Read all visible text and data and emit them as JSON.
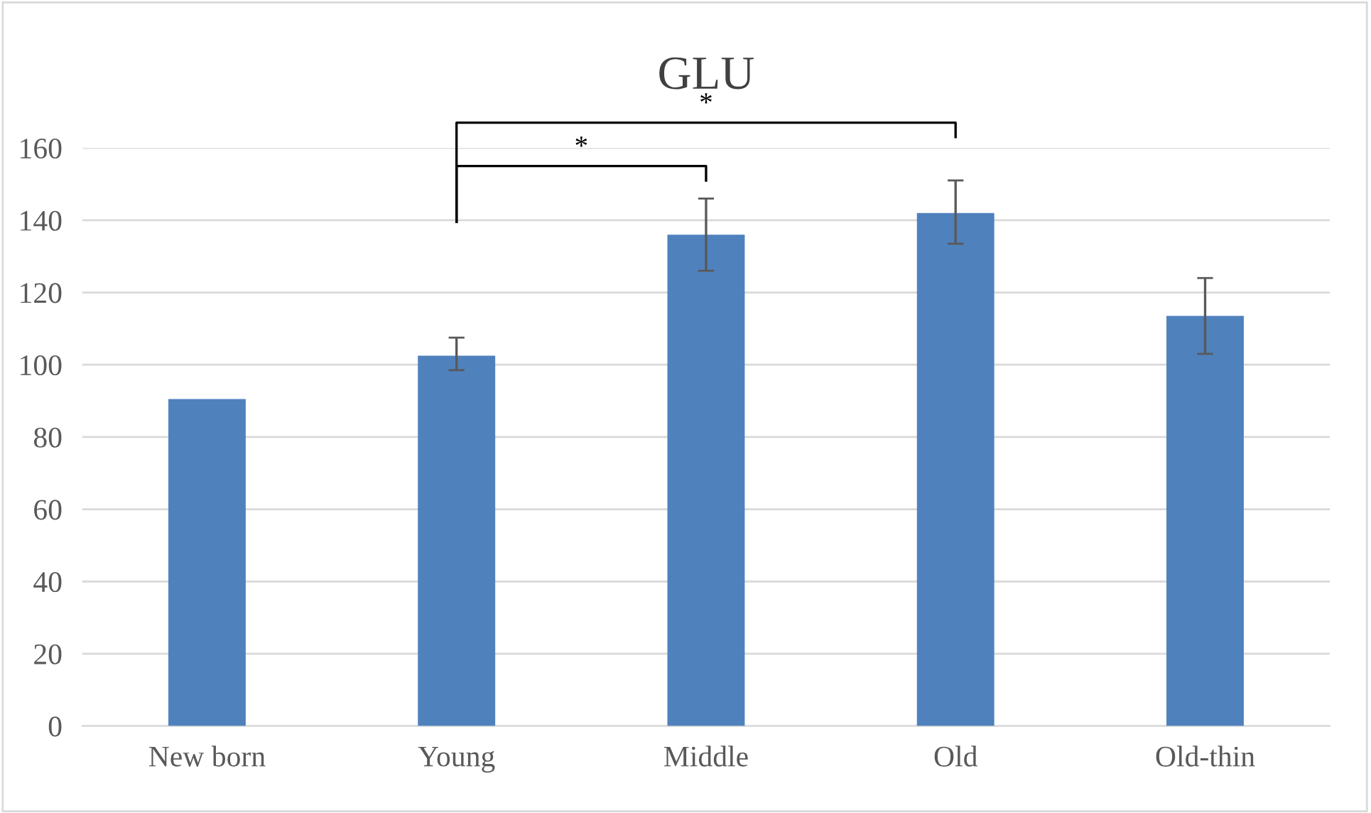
{
  "chart_data": {
    "type": "bar",
    "title": "GLU",
    "categories": [
      "New born",
      "Young",
      "Middle",
      "Old",
      "Old-thin"
    ],
    "values": [
      90.5,
      102.5,
      136,
      142,
      113.5
    ],
    "errors": [
      null,
      [
        98.5,
        107.5
      ],
      [
        126,
        146
      ],
      [
        133.5,
        151
      ],
      [
        103,
        124
      ]
    ],
    "color": "#4f81bd",
    "ylim": [
      0,
      160
    ],
    "yticks": [
      0,
      20,
      40,
      60,
      80,
      100,
      120,
      140,
      160
    ],
    "grid": "y",
    "legend": false,
    "annotations": [
      "*",
      "*"
    ]
  }
}
